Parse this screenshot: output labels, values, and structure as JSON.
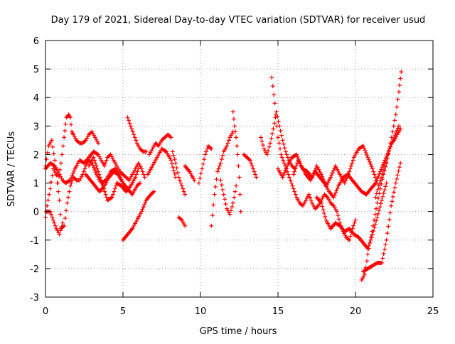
{
  "chart_data": {
    "type": "scatter",
    "title": "Day 179 of 2021, Sidereal Day-to-day VTEC variation (SDTVAR) for receiver usud",
    "xlabel": "GPS time / hours",
    "ylabel": "SDTVAR / TECUs",
    "xlim": [
      0,
      25
    ],
    "ylim": [
      -3,
      6
    ],
    "xticks": [
      0,
      5,
      10,
      15,
      20,
      25
    ],
    "yticks": [
      -3,
      -2,
      -1,
      0,
      1,
      2,
      3,
      4,
      5,
      6
    ],
    "grid": true,
    "marker": "+",
    "marker_color": "#ff0000",
    "series": [
      {
        "name": "s1",
        "x": [
          0.0,
          0.2,
          0.4,
          0.6,
          0.8,
          1.0,
          1.2,
          1.35,
          1.5,
          1.6,
          1.7,
          1.8,
          2.0,
          2.2,
          2.4,
          2.6,
          2.8,
          3.0,
          3.2,
          3.4
        ],
        "y": [
          1.6,
          2.3,
          2.5,
          1.8,
          1.0,
          1.7,
          2.6,
          3.3,
          3.4,
          3.3,
          2.8,
          2.7,
          2.5,
          2.4,
          2.4,
          2.5,
          2.7,
          2.8,
          2.6,
          2.4
        ]
      },
      {
        "name": "s2",
        "x": [
          0.0,
          0.1,
          0.3,
          0.5,
          0.7,
          0.9,
          1.0,
          1.2,
          1.4,
          1.6,
          1.8,
          2.0,
          2.2,
          2.4,
          2.6,
          2.8,
          3.0,
          3.3,
          3.6,
          3.9,
          4.2,
          4.5,
          4.8,
          5.0
        ],
        "y": [
          -0.2,
          0.2,
          0.8,
          1.5,
          1.3,
          0.4,
          -0.6,
          -0.5,
          0.3,
          0.9,
          1.2,
          1.1,
          1.1,
          1.3,
          1.6,
          1.8,
          1.7,
          1.3,
          1.0,
          1.1,
          1.4,
          1.5,
          1.2,
          1.0
        ]
      },
      {
        "name": "s3",
        "x": [
          0.0,
          0.3,
          0.6,
          0.9,
          1.1,
          1.3,
          1.6,
          1.9,
          2.2,
          2.5,
          2.8,
          3.1,
          3.4,
          3.6,
          3.8,
          4.0,
          4.2,
          4.4,
          4.6,
          4.8,
          5.0,
          5.2,
          5.4,
          5.6,
          5.8,
          6.0,
          6.2,
          6.4
        ],
        "y": [
          1.5,
          1.7,
          1.6,
          1.3,
          1.1,
          1.0,
          1.1,
          1.5,
          1.8,
          1.7,
          1.9,
          2.1,
          2.0,
          1.8,
          1.6,
          1.9,
          2.0,
          1.8,
          1.6,
          1.4,
          1.3,
          1.2,
          1.1,
          1.3,
          1.5,
          1.7,
          1.5,
          1.2
        ]
      },
      {
        "name": "s4",
        "x": [
          0.1,
          0.3,
          0.5,
          0.7,
          0.9,
          1.1
        ],
        "y": [
          0.0,
          0.0,
          -0.3,
          -0.6,
          -0.8,
          -0.4
        ]
      },
      {
        "name": "s5",
        "x": [
          2.8,
          3.1,
          3.4,
          3.7,
          4.0,
          4.3,
          4.6,
          4.9,
          5.2,
          5.5,
          5.8,
          6.0
        ],
        "y": [
          1.6,
          1.9,
          1.4,
          0.9,
          0.4,
          0.5,
          1.0,
          0.9,
          0.7,
          0.9,
          1.2,
          1.5
        ]
      },
      {
        "name": "s6",
        "x": [
          2.6,
          2.9,
          3.2,
          3.5,
          3.8,
          4.1,
          4.4,
          4.7,
          5.0,
          5.3,
          5.6,
          5.9,
          6.1
        ],
        "y": [
          1.3,
          1.1,
          0.9,
          0.7,
          0.9,
          1.2,
          1.4,
          1.3,
          1.0,
          0.8,
          0.6,
          0.9,
          1.0
        ]
      },
      {
        "name": "s7",
        "x": [
          5.3,
          5.5,
          5.7,
          5.9,
          6.1,
          6.3,
          6.5
        ],
        "y": [
          3.3,
          3.0,
          2.7,
          2.4,
          2.2,
          2.1,
          2.1
        ]
      },
      {
        "name": "s8",
        "x": [
          5.0,
          5.3,
          5.6,
          5.9,
          6.2,
          6.5,
          6.8,
          7.0
        ],
        "y": [
          -1.0,
          -0.8,
          -0.6,
          -0.3,
          0.0,
          0.4,
          0.6,
          0.7
        ]
      },
      {
        "name": "s9",
        "x": [
          6.7,
          6.9,
          7.1,
          7.3,
          7.5,
          7.7,
          7.9,
          8.1
        ],
        "y": [
          2.0,
          2.2,
          2.4,
          2.3,
          2.5,
          2.6,
          2.7,
          2.6
        ]
      },
      {
        "name": "s10",
        "x": [
          6.6,
          6.9,
          7.2,
          7.5,
          7.8,
          8.1,
          8.4
        ],
        "y": [
          1.3,
          1.6,
          1.9,
          2.2,
          2.1,
          1.8,
          1.2
        ]
      },
      {
        "name": "s11",
        "x": [
          8.2,
          8.4,
          8.6,
          8.8,
          9.0
        ],
        "y": [
          2.1,
          1.7,
          1.2,
          0.9,
          0.6
        ]
      },
      {
        "name": "s12",
        "x": [
          8.6,
          8.8,
          9.0
        ],
        "y": [
          -0.2,
          -0.3,
          -0.5
        ]
      },
      {
        "name": "s13",
        "x": [
          9.0,
          9.3,
          9.6
        ],
        "y": [
          1.6,
          1.4,
          1.1
        ]
      },
      {
        "name": "s14",
        "x": [
          9.9,
          10.1,
          10.3,
          10.5,
          10.7
        ],
        "y": [
          1.0,
          1.5,
          2.0,
          2.3,
          2.2
        ]
      },
      {
        "name": "s15",
        "x": [
          10.7,
          10.9,
          11.1,
          11.3,
          11.5,
          11.7,
          11.9,
          12.1
        ],
        "y": [
          -0.5,
          0.6,
          1.4,
          1.7,
          2.1,
          2.3,
          2.6,
          2.8
        ]
      },
      {
        "name": "s16",
        "x": [
          11.3,
          11.5,
          11.7,
          11.9,
          12.1,
          12.3
        ],
        "y": [
          1.1,
          0.6,
          0.1,
          -0.1,
          0.3,
          0.9
        ]
      },
      {
        "name": "s17",
        "x": [
          12.1,
          12.2,
          12.3,
          12.4,
          12.5,
          12.6
        ],
        "y": [
          3.5,
          3.0,
          2.6,
          2.0,
          1.2,
          0.0
        ]
      },
      {
        "name": "s18",
        "x": [
          12.8,
          13.0,
          13.2,
          13.4,
          13.6
        ],
        "y": [
          2.0,
          1.9,
          1.8,
          1.5,
          1.2
        ]
      },
      {
        "name": "s19",
        "x": [
          13.9,
          14.1,
          14.3,
          14.5,
          14.7,
          14.9,
          15.1,
          15.3,
          15.5,
          15.7,
          15.9,
          16.1
        ],
        "y": [
          2.6,
          2.2,
          2.0,
          2.4,
          2.9,
          3.5,
          3.0,
          2.5,
          2.1,
          1.8,
          1.6,
          1.5
        ]
      },
      {
        "name": "s20",
        "x": [
          14.6,
          14.8,
          15.0,
          15.2,
          15.4,
          15.6,
          15.8,
          16.0,
          16.2,
          16.4,
          16.6,
          16.8,
          17.0,
          17.2,
          17.4,
          17.6,
          17.8,
          18.0,
          18.2,
          18.4,
          18.6,
          18.8,
          19.0,
          19.2,
          19.4,
          19.6,
          19.8,
          20.0
        ],
        "y": [
          4.7,
          3.8,
          2.6,
          2.0,
          1.7,
          1.4,
          1.1,
          0.8,
          0.5,
          0.3,
          0.2,
          0.4,
          0.6,
          0.3,
          0.1,
          0.2,
          0.4,
          0.6,
          0.5,
          0.3,
          0.2,
          0.0,
          -0.4,
          -0.7,
          -0.9,
          -1.0,
          -0.6,
          -0.3
        ]
      },
      {
        "name": "s21",
        "x": [
          15.0,
          15.3,
          15.6,
          15.9,
          16.2,
          16.5,
          16.8,
          17.1,
          17.4,
          17.7,
          18.0,
          18.3,
          18.6,
          18.9,
          19.2,
          19.5,
          19.8,
          20.1,
          20.4,
          20.7,
          21.0,
          21.3,
          21.6,
          21.9,
          22.2,
          22.5,
          22.8
        ],
        "y": [
          1.5,
          1.2,
          1.6,
          1.9,
          2.0,
          1.6,
          1.3,
          1.1,
          1.4,
          1.2,
          1.0,
          0.7,
          0.5,
          0.9,
          1.2,
          1.3,
          1.1,
          0.9,
          0.7,
          0.6,
          0.8,
          1.0,
          1.4,
          1.8,
          2.2,
          2.6,
          3.0
        ]
      },
      {
        "name": "s22",
        "x": [
          16.0,
          16.3,
          16.6,
          16.9,
          17.2,
          17.5,
          17.8,
          18.1,
          18.4,
          18.7,
          19.0,
          19.3,
          19.6,
          19.9,
          20.2,
          20.5,
          20.8,
          21.1,
          21.4
        ],
        "y": [
          1.3,
          1.8,
          1.5,
          1.4,
          1.2,
          1.6,
          1.3,
          0.9,
          1.2,
          1.6,
          1.3,
          1.0,
          1.4,
          1.9,
          2.2,
          2.3,
          1.9,
          1.5,
          1.0
        ]
      },
      {
        "name": "s23",
        "x": [
          17.5,
          17.8,
          18.1,
          18.4,
          18.7,
          19.0,
          19.3,
          19.6,
          19.9,
          20.2,
          20.5,
          20.8,
          21.1,
          21.4,
          21.7,
          22.0
        ],
        "y": [
          0.5,
          0.3,
          -0.3,
          -0.6,
          -0.4,
          -0.5,
          -0.7,
          -0.6,
          -0.8,
          -0.9,
          -1.1,
          -1.3,
          -0.8,
          -0.2,
          0.4,
          1.0
        ]
      },
      {
        "name": "s24",
        "x": [
          20.5,
          20.8,
          21.1,
          21.4,
          21.7,
          22.0,
          22.3,
          22.6,
          22.9
        ],
        "y": [
          -2.1,
          -2.0,
          -1.9,
          -1.8,
          -1.8,
          -1.0,
          0.2,
          1.0,
          1.7
        ]
      },
      {
        "name": "s25",
        "x": [
          20.4,
          20.6,
          20.8,
          21.0,
          21.2,
          21.4,
          21.6,
          21.8,
          22.0,
          22.2,
          22.4,
          22.6,
          22.8,
          22.95
        ],
        "y": [
          -2.4,
          -2.2,
          -1.5,
          -0.9,
          -0.3,
          0.3,
          0.8,
          1.3,
          1.7,
          2.2,
          2.8,
          3.4,
          4.2,
          4.9
        ]
      },
      {
        "name": "s26",
        "x": [
          21.3,
          21.5,
          21.7,
          21.9,
          22.1,
          22.3,
          22.5,
          22.7,
          22.9
        ],
        "y": [
          0.5,
          0.9,
          1.2,
          1.6,
          2.0,
          2.4,
          2.5,
          2.7,
          2.9
        ]
      }
    ]
  }
}
